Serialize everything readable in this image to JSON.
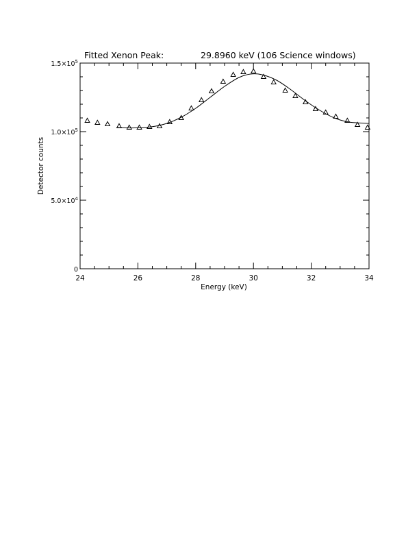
{
  "chart_data": {
    "type": "scatter",
    "title_left": "Fitted Xenon Peak:",
    "title_right": "29.8960 keV (106 Science windows)",
    "xlabel": "Energy (keV)",
    "ylabel": "Detector counts",
    "xlim": [
      24,
      34
    ],
    "ylim": [
      0,
      150000
    ],
    "x_ticks": [
      24,
      26,
      28,
      30,
      32,
      34
    ],
    "x_tick_labels": [
      "24",
      "26",
      "28",
      "30",
      "32",
      "34"
    ],
    "y_ticks": [
      {
        "value": 0,
        "mantissa": "0",
        "exponent": ""
      },
      {
        "value": 50000,
        "mantissa": "5.0×10",
        "exponent": "4"
      },
      {
        "value": 100000,
        "mantissa": "1.0×10",
        "exponent": "5"
      },
      {
        "value": 150000,
        "mantissa": "1.5×10",
        "exponent": "5"
      }
    ],
    "grid": false,
    "series": [
      {
        "kind": "points",
        "marker": "triangle",
        "x": [
          24.25,
          24.6,
          24.95,
          25.35,
          25.7,
          26.05,
          26.4,
          26.75,
          27.1,
          27.5,
          27.85,
          28.2,
          28.55,
          28.95,
          29.3,
          29.65,
          30.0,
          30.35,
          30.7,
          31.1,
          31.45,
          31.8,
          32.15,
          32.5,
          32.85,
          33.25,
          33.6,
          33.95
        ],
        "y": [
          108000,
          106500,
          105500,
          104000,
          103000,
          103000,
          103500,
          104000,
          107000,
          110000,
          117000,
          123000,
          129500,
          136500,
          141500,
          143500,
          144000,
          140000,
          136000,
          130000,
          126000,
          121500,
          116500,
          114000,
          111000,
          108000,
          105000,
          103000
        ]
      },
      {
        "kind": "fit",
        "style": "line",
        "x": [
          25.3,
          25.7,
          26.0,
          26.5,
          27.0,
          27.5,
          28.0,
          28.5,
          29.0,
          29.5,
          29.9,
          30.3,
          30.8,
          31.3,
          31.8,
          32.3,
          32.8,
          33.3,
          34.0
        ],
        "y": [
          103000,
          102700,
          102800,
          103600,
          106000,
          110500,
          117000,
          125000,
          133000,
          139500,
          142000,
          141500,
          137500,
          130500,
          122500,
          115500,
          110000,
          107000,
          106000
        ]
      }
    ]
  }
}
